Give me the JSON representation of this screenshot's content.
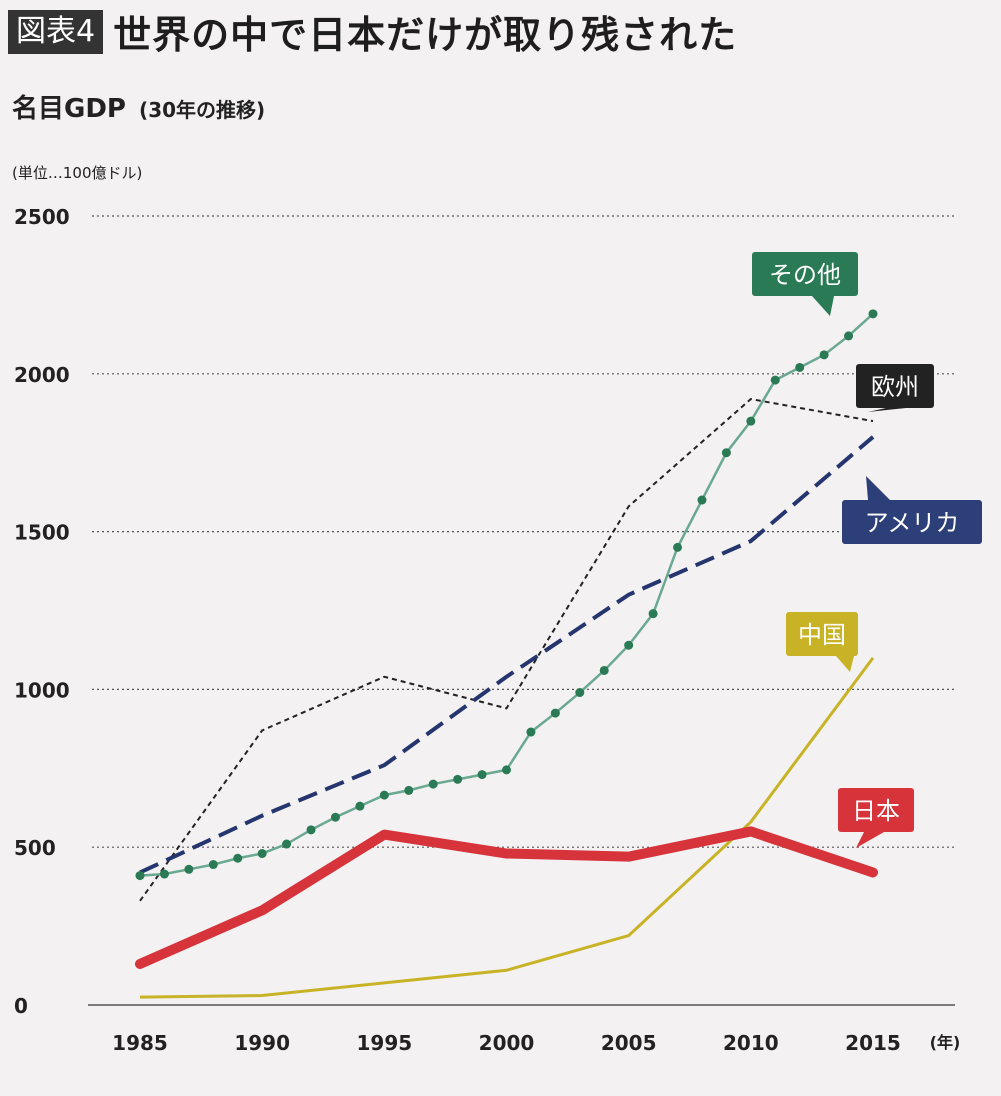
{
  "header": {
    "badge": "図表4",
    "title": "世界の中で日本だけが取り残された"
  },
  "chart_data": {
    "type": "line",
    "title": "名目GDP",
    "subtitle": "(30年の推移)",
    "unit_label": "(単位…100億ドル)",
    "x_unit": "(年)",
    "x": [
      1985,
      1990,
      1995,
      2000,
      2005,
      2010,
      2015
    ],
    "xlim": [
      1985,
      2015
    ],
    "ylim": [
      0,
      2500
    ],
    "yticks": [
      0,
      500,
      1000,
      1500,
      2000,
      2500
    ],
    "grid": "horizontal-dotted",
    "series": [
      {
        "name": "その他",
        "color": "#2a7a55",
        "label_bg": "#2a7a55",
        "style": "dotted-markers",
        "x": [
          1985,
          1986,
          1987,
          1988,
          1989,
          1990,
          1991,
          1992,
          1993,
          1994,
          1995,
          1996,
          1997,
          1998,
          1999,
          2000,
          2001,
          2002,
          2003,
          2004,
          2005,
          2006,
          2007,
          2008,
          2009,
          2010,
          2011,
          2012,
          2013,
          2014,
          2015
        ],
        "values": [
          410,
          415,
          430,
          445,
          465,
          480,
          510,
          555,
          595,
          630,
          665,
          680,
          700,
          715,
          730,
          745,
          865,
          925,
          990,
          1060,
          1140,
          1240,
          1450,
          1600,
          1750,
          1850,
          1980,
          2020,
          2060,
          2120,
          2190
        ]
      },
      {
        "name": "欧州",
        "color": "#222222",
        "label_bg": "#222222",
        "style": "thin-dashed",
        "values": [
          330,
          870,
          1040,
          940,
          1580,
          1920,
          1850
        ]
      },
      {
        "name": "アメリカ",
        "color": "#25356e",
        "label_bg": "#2d3f78",
        "style": "thick-dashed",
        "values": [
          420,
          600,
          760,
          1040,
          1300,
          1470,
          1800
        ]
      },
      {
        "name": "中国",
        "color": "#c8b327",
        "label_bg": "#c8b327",
        "style": "solid-thin",
        "values": [
          25,
          30,
          70,
          110,
          220,
          580,
          1100
        ]
      },
      {
        "name": "日本",
        "color": "#d6333b",
        "label_bg": "#d6333b",
        "style": "solid-thick",
        "values": [
          130,
          300,
          540,
          480,
          470,
          550,
          420
        ]
      }
    ]
  }
}
